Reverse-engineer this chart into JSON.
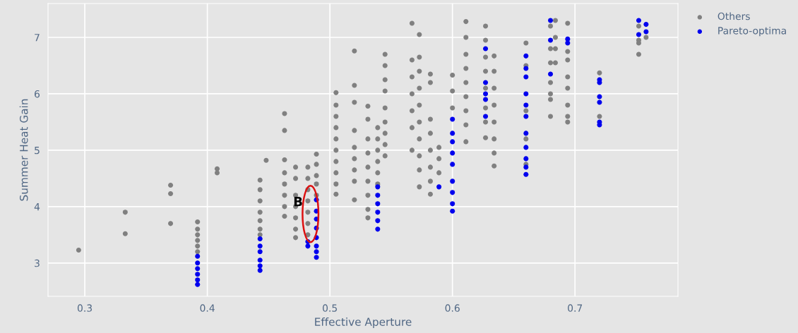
{
  "chart_data": {
    "type": "scatter",
    "xlabel": "Effective Aperture",
    "ylabel": "Summer Heat Gain",
    "xlim": [
      0.27,
      0.784
    ],
    "ylim": [
      2.41,
      7.6
    ],
    "xticks": [
      0.3,
      0.4,
      0.5,
      0.6,
      0.7
    ],
    "yticks": [
      3,
      4,
      5,
      6,
      7
    ],
    "grid": true,
    "legend": "top right",
    "marker": "circle",
    "annotations": [
      {
        "text": "B",
        "x": 0.478,
        "y": 4.07
      }
    ],
    "series": [
      {
        "name": "Others",
        "color": "#808080",
        "x": [
          0.295,
          0.333,
          0.333,
          0.37,
          0.37,
          0.37,
          0.392,
          0.392,
          0.392,
          0.392,
          0.392,
          0.392,
          0.408,
          0.408,
          0.443,
          0.443,
          0.443,
          0.443,
          0.443,
          0.443,
          0.443,
          0.448,
          0.463,
          0.463,
          0.463,
          0.463,
          0.463,
          0.463,
          0.463,
          0.463,
          0.472,
          0.472,
          0.472,
          0.472,
          0.472,
          0.472,
          0.472,
          0.482,
          0.482,
          0.482,
          0.482,
          0.482,
          0.482,
          0.482,
          0.489,
          0.489,
          0.489,
          0.489,
          0.489,
          0.505,
          0.505,
          0.505,
          0.505,
          0.505,
          0.505,
          0.505,
          0.505,
          0.505,
          0.505,
          0.52,
          0.52,
          0.52,
          0.52,
          0.52,
          0.52,
          0.52,
          0.52,
          0.52,
          0.531,
          0.531,
          0.531,
          0.531,
          0.531,
          0.531,
          0.531,
          0.531,
          0.531,
          0.539,
          0.539,
          0.539,
          0.539,
          0.539,
          0.539,
          0.545,
          0.545,
          0.545,
          0.545,
          0.545,
          0.545,
          0.545,
          0.545,
          0.545,
          0.567,
          0.567,
          0.567,
          0.567,
          0.567,
          0.567,
          0.567,
          0.573,
          0.573,
          0.573,
          0.573,
          0.573,
          0.573,
          0.573,
          0.573,
          0.573,
          0.573,
          0.582,
          0.582,
          0.582,
          0.582,
          0.582,
          0.582,
          0.582,
          0.582,
          0.589,
          0.589,
          0.589,
          0.6,
          0.6,
          0.6,
          0.611,
          0.611,
          0.611,
          0.611,
          0.611,
          0.611,
          0.611,
          0.611,
          0.611,
          0.627,
          0.627,
          0.627,
          0.627,
          0.627,
          0.627,
          0.627,
          0.627,
          0.634,
          0.634,
          0.634,
          0.634,
          0.634,
          0.634,
          0.634,
          0.634,
          0.66,
          0.66,
          0.66,
          0.66,
          0.66,
          0.68,
          0.68,
          0.68,
          0.68,
          0.68,
          0.68,
          0.68,
          0.684,
          0.684,
          0.684,
          0.684,
          0.694,
          0.694,
          0.694,
          0.694,
          0.694,
          0.694,
          0.694,
          0.694,
          0.72,
          0.72,
          0.752,
          0.752,
          0.752,
          0.752,
          0.758
        ],
        "values": [
          3.23,
          3.9,
          3.52,
          4.38,
          4.23,
          3.7,
          3.73,
          3.6,
          3.5,
          3.4,
          3.3,
          3.2,
          4.67,
          4.6,
          4.47,
          4.3,
          4.1,
          3.9,
          3.75,
          3.6,
          3.5,
          4.82,
          5.65,
          5.35,
          4.83,
          4.6,
          4.4,
          4.2,
          4.0,
          3.83,
          4.7,
          4.5,
          4.2,
          4.0,
          3.8,
          3.6,
          3.45,
          4.7,
          4.5,
          4.3,
          4.1,
          3.9,
          3.7,
          3.5,
          4.93,
          4.75,
          4.55,
          4.4,
          4.2,
          6.02,
          5.8,
          5.6,
          5.4,
          5.2,
          5.0,
          4.8,
          4.6,
          4.4,
          4.22,
          6.76,
          6.15,
          5.85,
          5.35,
          5.05,
          4.85,
          4.65,
          4.45,
          4.12,
          5.78,
          5.55,
          5.2,
          4.95,
          4.7,
          4.45,
          4.2,
          3.95,
          3.8,
          5.4,
          5.2,
          5.0,
          4.8,
          4.6,
          4.4,
          6.7,
          6.5,
          6.25,
          6.05,
          5.75,
          5.5,
          5.3,
          5.1,
          4.9,
          7.25,
          6.6,
          6.3,
          6.0,
          5.7,
          5.4,
          5.0,
          7.05,
          6.65,
          6.4,
          6.1,
          5.8,
          5.5,
          5.2,
          4.9,
          4.65,
          4.35,
          6.35,
          6.2,
          5.55,
          5.3,
          5.0,
          4.7,
          4.45,
          4.22,
          5.05,
          4.85,
          4.6,
          6.33,
          6.05,
          5.75,
          7.28,
          7.0,
          6.7,
          6.45,
          6.2,
          5.95,
          5.7,
          5.45,
          5.15,
          7.2,
          6.95,
          6.65,
          6.4,
          6.1,
          5.75,
          5.5,
          5.22,
          6.67,
          6.4,
          6.1,
          5.8,
          5.5,
          5.2,
          4.95,
          4.72,
          6.9,
          6.5,
          5.7,
          5.2,
          4.75,
          7.2,
          6.8,
          6.55,
          6.2,
          6.0,
          5.9,
          5.6,
          7.3,
          7.0,
          6.8,
          6.55,
          7.25,
          6.75,
          6.6,
          6.3,
          6.1,
          5.8,
          5.6,
          5.5,
          6.37,
          5.6,
          7.2,
          6.95,
          6.9,
          6.7,
          7.0
        ]
      },
      {
        "name": "Pareto-optima",
        "color": "#0000ee",
        "x": [
          0.392,
          0.392,
          0.392,
          0.392,
          0.392,
          0.392,
          0.443,
          0.443,
          0.443,
          0.443,
          0.443,
          0.443,
          0.482,
          0.482,
          0.489,
          0.489,
          0.489,
          0.489,
          0.489,
          0.489,
          0.489,
          0.489,
          0.539,
          0.539,
          0.539,
          0.539,
          0.539,
          0.539,
          0.589,
          0.6,
          0.6,
          0.6,
          0.6,
          0.6,
          0.6,
          0.6,
          0.6,
          0.6,
          0.627,
          0.627,
          0.627,
          0.627,
          0.627,
          0.66,
          0.66,
          0.66,
          0.66,
          0.66,
          0.66,
          0.66,
          0.66,
          0.66,
          0.66,
          0.66,
          0.68,
          0.68,
          0.68,
          0.694,
          0.694,
          0.72,
          0.72,
          0.72,
          0.72,
          0.72,
          0.72,
          0.752,
          0.752,
          0.758,
          0.758
        ],
        "values": [
          3.12,
          3.0,
          2.9,
          2.8,
          2.7,
          2.62,
          3.43,
          3.3,
          3.2,
          3.05,
          2.95,
          2.87,
          3.38,
          3.3,
          4.12,
          3.92,
          3.78,
          3.62,
          3.45,
          3.3,
          3.2,
          3.1,
          4.35,
          4.2,
          4.05,
          3.9,
          3.75,
          3.6,
          4.35,
          5.55,
          5.3,
          5.15,
          4.95,
          4.75,
          4.45,
          4.25,
          4.05,
          3.92,
          6.8,
          6.2,
          6.0,
          5.9,
          5.6,
          6.67,
          6.45,
          6.3,
          6.0,
          5.8,
          5.6,
          5.3,
          5.05,
          4.85,
          4.7,
          4.57,
          7.3,
          6.95,
          6.35,
          6.97,
          6.9,
          6.25,
          6.2,
          5.95,
          5.85,
          5.5,
          5.45,
          7.3,
          7.05,
          7.23,
          7.1
        ]
      }
    ]
  }
}
